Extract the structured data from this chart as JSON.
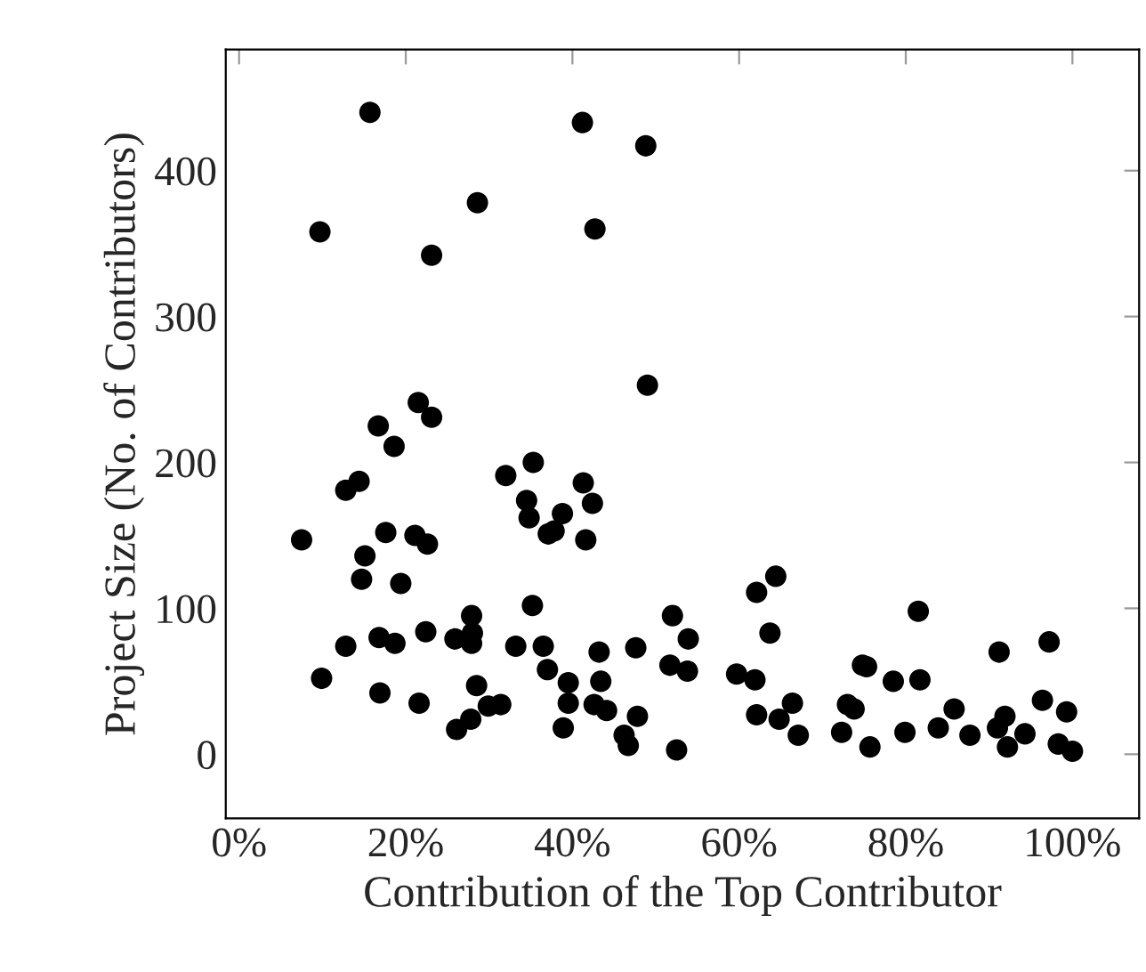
{
  "chart_data": {
    "type": "scatter",
    "xlabel": "Contribution of the Top Contributor",
    "ylabel": "Project Size (No. of Contributors)",
    "xlim": [
      -1.6,
      108
    ],
    "ylim": [
      -44,
      483
    ],
    "xticks": [
      {
        "value": 0,
        "label": "0%"
      },
      {
        "value": 20,
        "label": "20%"
      },
      {
        "value": 40,
        "label": "40%"
      },
      {
        "value": 60,
        "label": "60%"
      },
      {
        "value": 80,
        "label": "80%"
      },
      {
        "value": 100,
        "label": "100%"
      }
    ],
    "yticks": [
      0,
      100,
      200,
      300,
      400
    ],
    "grid": false,
    "marker": "circle",
    "series": [
      {
        "color": "#000000",
        "x": [
          15.7,
          41.2,
          48.8,
          28.6,
          9.7,
          42.7,
          23.1,
          49.0,
          21.5,
          23.1,
          16.7,
          18.6,
          14.4,
          12.8,
          17.6,
          21.1,
          22.6,
          7.5,
          15.1,
          14.7,
          19.4,
          32.0,
          35.3,
          34.5,
          34.8,
          38.8,
          37.1,
          37.8,
          41.3,
          42.4,
          41.6,
          35.2,
          27.9,
          28.0,
          27.9,
          25.9,
          22.4,
          16.8,
          18.7,
          12.8,
          33.2,
          36.5,
          43.2,
          47.6,
          52.0,
          53.9,
          51.7,
          53.8,
          9.9,
          37.0,
          39.5,
          43.4,
          39.5,
          42.6,
          44.1,
          47.8,
          16.9,
          28.5,
          21.6,
          29.9,
          31.4,
          27.8,
          26.1,
          38.9,
          46.2,
          46.7,
          52.5,
          62.1,
          64.4,
          63.7,
          59.7,
          61.9,
          62.1,
          64.8,
          66.4,
          67.1,
          72.3,
          73.0,
          73.8,
          74.8,
          75.3,
          75.7,
          78.5,
          79.9,
          81.7,
          81.5,
          83.9,
          85.8,
          87.7,
          91.2,
          91.0,
          91.9,
          92.2,
          94.3,
          96.4,
          97.2,
          99.3,
          98.3,
          100
        ],
        "values": [
          440,
          433,
          417,
          378,
          358,
          360,
          342,
          253,
          241,
          231,
          225,
          211,
          187,
          181,
          152,
          150,
          144,
          147,
          136,
          120,
          117,
          191,
          200,
          174,
          162,
          165,
          151,
          153,
          186,
          172,
          147,
          102,
          95,
          83,
          76,
          79,
          84,
          80,
          76,
          74,
          74,
          74,
          70,
          73,
          95,
          79,
          61,
          57,
          52,
          58,
          49,
          50,
          35,
          34,
          30,
          26,
          42,
          47,
          35,
          33,
          34,
          24,
          17,
          18,
          13,
          6,
          3,
          111,
          122,
          83,
          55,
          51,
          27,
          24,
          35,
          13,
          15,
          34,
          31,
          61,
          60,
          5,
          50,
          15,
          51,
          98,
          18,
          31,
          13,
          70,
          18,
          26,
          5,
          14,
          37,
          77,
          29,
          7,
          2
        ]
      }
    ]
  }
}
